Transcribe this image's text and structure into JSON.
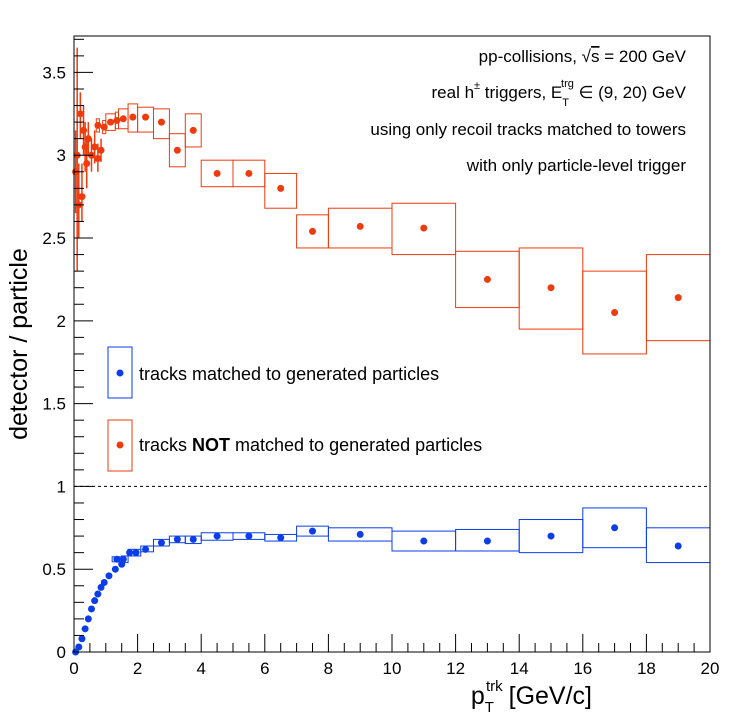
{
  "chart_data": {
    "type": "scatter",
    "xlim": [
      0,
      20
    ],
    "ylim": [
      0,
      3.72
    ],
    "grid": false,
    "xlabel": {
      "main": "p",
      "sup": "trk",
      "sub": "T",
      "unit": "[GeV/c]"
    },
    "ylabel": "detector / particle",
    "x_ticks": [
      "0",
      "2",
      "4",
      "6",
      "8",
      "10",
      "12",
      "14",
      "16",
      "18",
      "20"
    ],
    "y_ticks": [
      "0",
      "0.5",
      "1",
      "1.5",
      "2",
      "2.5",
      "3",
      "3.5"
    ],
    "reference_line": {
      "y": 1,
      "style": "dashed"
    },
    "annotations": {
      "line1": {
        "pre": "pp-collisions, ",
        "sqrt": "s",
        "post": " = 200 GeV"
      },
      "line2": {
        "pre": "real h",
        "sup_pm": "±",
        "mid": " triggers, E",
        "sup": "trg",
        "sub": "T",
        "post": " ∈ (9, 20) GeV"
      },
      "line3": "using only recoil tracks matched to towers",
      "line4": "with only particle-level trigger"
    },
    "legend": {
      "placement": "middle-left",
      "entries": [
        {
          "text": "tracks matched to generated particles"
        },
        {
          "pre": "tracks ",
          "bold": "NOT",
          "post": " matched to generated particles"
        }
      ]
    },
    "series": [
      {
        "color": "#0b3ee8",
        "stat_points": [
          {
            "x": 0.05,
            "y": 0.0
          },
          {
            "x": 0.15,
            "y": 0.03
          },
          {
            "x": 0.25,
            "y": 0.08
          },
          {
            "x": 0.35,
            "y": 0.14
          },
          {
            "x": 0.45,
            "y": 0.2
          },
          {
            "x": 0.55,
            "y": 0.26
          },
          {
            "x": 0.65,
            "y": 0.31
          },
          {
            "x": 0.75,
            "y": 0.35
          },
          {
            "x": 0.85,
            "y": 0.39
          },
          {
            "x": 0.95,
            "y": 0.42
          },
          {
            "x": 1.1,
            "y": 0.46
          },
          {
            "x": 1.3,
            "y": 0.5
          },
          {
            "x": 1.5,
            "y": 0.53
          }
        ],
        "syst_points": [
          {
            "x": 1.35,
            "y": 0.56,
            "xlo": 1.2,
            "xhi": 1.5,
            "ylo": 0.545,
            "yhi": 0.575
          },
          {
            "x": 1.55,
            "y": 0.56,
            "xlo": 1.5,
            "xhi": 1.7,
            "ylo": 0.54,
            "yhi": 0.58
          },
          {
            "x": 1.75,
            "y": 0.6,
            "xlo": 1.7,
            "xhi": 1.9,
            "ylo": 0.58,
            "yhi": 0.62
          },
          {
            "x": 1.95,
            "y": 0.6,
            "xlo": 1.9,
            "xhi": 2.1,
            "ylo": 0.58,
            "yhi": 0.62
          },
          {
            "x": 2.25,
            "y": 0.62,
            "xlo": 2.1,
            "xhi": 2.5,
            "ylo": 0.605,
            "yhi": 0.64
          },
          {
            "x": 2.75,
            "y": 0.66,
            "xlo": 2.5,
            "xhi": 3.0,
            "ylo": 0.64,
            "yhi": 0.68
          },
          {
            "x": 3.25,
            "y": 0.68,
            "xlo": 3.0,
            "xhi": 3.5,
            "ylo": 0.66,
            "yhi": 0.7
          },
          {
            "x": 3.75,
            "y": 0.68,
            "xlo": 3.5,
            "xhi": 4.0,
            "ylo": 0.655,
            "yhi": 0.7
          },
          {
            "x": 4.5,
            "y": 0.7,
            "xlo": 4.0,
            "xhi": 5.0,
            "ylo": 0.675,
            "yhi": 0.72
          },
          {
            "x": 5.5,
            "y": 0.7,
            "xlo": 5.0,
            "xhi": 6.0,
            "ylo": 0.68,
            "yhi": 0.72
          },
          {
            "x": 6.5,
            "y": 0.69,
            "xlo": 6.0,
            "xhi": 7.0,
            "ylo": 0.67,
            "yhi": 0.71
          },
          {
            "x": 7.5,
            "y": 0.73,
            "xlo": 7.0,
            "xhi": 8.0,
            "ylo": 0.7,
            "yhi": 0.76
          },
          {
            "x": 9.0,
            "y": 0.71,
            "xlo": 8.0,
            "xhi": 10.0,
            "ylo": 0.67,
            "yhi": 0.75
          },
          {
            "x": 11.0,
            "y": 0.67,
            "xlo": 10.0,
            "xhi": 12.0,
            "ylo": 0.61,
            "yhi": 0.73
          },
          {
            "x": 13.0,
            "y": 0.67,
            "xlo": 12.0,
            "xhi": 14.0,
            "ylo": 0.61,
            "yhi": 0.74
          },
          {
            "x": 15.0,
            "y": 0.7,
            "xlo": 14.0,
            "xhi": 16.0,
            "ylo": 0.6,
            "yhi": 0.8
          },
          {
            "x": 17.0,
            "y": 0.75,
            "xlo": 16.0,
            "xhi": 18.0,
            "ylo": 0.63,
            "yhi": 0.87
          },
          {
            "x": 19.0,
            "y": 0.64,
            "xlo": 18.0,
            "xhi": 20.0,
            "ylo": 0.54,
            "yhi": 0.75
          }
        ]
      },
      {
        "color": "#ee3b0e",
        "stat_points": [
          {
            "x": 0.05,
            "y": 2.9,
            "ylo": 2.65,
            "yhi": 3.15
          },
          {
            "x": 0.1,
            "y": 3.0,
            "ylo": 2.3,
            "yhi": 3.65
          },
          {
            "x": 0.15,
            "y": 2.7,
            "ylo": 2.5,
            "yhi": 2.95
          },
          {
            "x": 0.2,
            "y": 3.25,
            "ylo": 3.1,
            "yhi": 3.38
          },
          {
            "x": 0.25,
            "y": 2.75,
            "ylo": 2.6,
            "yhi": 2.95
          },
          {
            "x": 0.3,
            "y": 3.15,
            "ylo": 3.0,
            "yhi": 3.3
          },
          {
            "x": 0.35,
            "y": 3.05,
            "ylo": 2.9,
            "yhi": 3.2
          },
          {
            "x": 0.4,
            "y": 2.95,
            "ylo": 2.8,
            "yhi": 3.1
          },
          {
            "x": 0.45,
            "y": 3.1,
            "ylo": 3.0,
            "yhi": 3.2
          },
          {
            "x": 0.55,
            "y": 3.0,
            "ylo": 2.9,
            "yhi": 3.1
          },
          {
            "x": 0.65,
            "y": 3.05,
            "ylo": 2.95,
            "yhi": 3.15
          },
          {
            "x": 0.75,
            "y": 2.98,
            "ylo": 2.9,
            "yhi": 3.07
          },
          {
            "x": 0.85,
            "y": 3.03,
            "ylo": 2.96,
            "yhi": 3.1
          }
        ],
        "syst_points": [
          {
            "x": 0.75,
            "y": 3.18,
            "xlo": 0.7,
            "xhi": 0.8,
            "ylo": 3.14,
            "yhi": 3.22
          },
          {
            "x": 0.95,
            "y": 3.17,
            "xlo": 0.9,
            "xhi": 1.0,
            "ylo": 3.13,
            "yhi": 3.21
          },
          {
            "x": 1.15,
            "y": 3.2,
            "xlo": 1.0,
            "xhi": 1.3,
            "ylo": 3.15,
            "yhi": 3.25
          },
          {
            "x": 1.35,
            "y": 3.21,
            "xlo": 1.3,
            "xhi": 1.4,
            "ylo": 3.16,
            "yhi": 3.26
          },
          {
            "x": 1.55,
            "y": 3.22,
            "xlo": 1.4,
            "xhi": 1.7,
            "ylo": 3.16,
            "yhi": 3.28
          },
          {
            "x": 1.85,
            "y": 3.23,
            "xlo": 1.7,
            "xhi": 2.0,
            "ylo": 3.14,
            "yhi": 3.31
          },
          {
            "x": 2.25,
            "y": 3.23,
            "xlo": 2.0,
            "xhi": 2.5,
            "ylo": 3.14,
            "yhi": 3.29
          },
          {
            "x": 2.75,
            "y": 3.2,
            "xlo": 2.5,
            "xhi": 3.0,
            "ylo": 3.1,
            "yhi": 3.28
          },
          {
            "x": 3.25,
            "y": 3.03,
            "xlo": 3.0,
            "xhi": 3.5,
            "ylo": 2.93,
            "yhi": 3.13
          },
          {
            "x": 3.75,
            "y": 3.15,
            "xlo": 3.5,
            "xhi": 4.0,
            "ylo": 3.05,
            "yhi": 3.25
          },
          {
            "x": 4.5,
            "y": 2.89,
            "xlo": 4.0,
            "xhi": 5.0,
            "ylo": 2.81,
            "yhi": 2.97
          },
          {
            "x": 5.5,
            "y": 2.89,
            "xlo": 5.0,
            "xhi": 6.0,
            "ylo": 2.81,
            "yhi": 2.97
          },
          {
            "x": 6.5,
            "y": 2.8,
            "xlo": 6.0,
            "xhi": 7.0,
            "ylo": 2.68,
            "yhi": 2.89
          },
          {
            "x": 7.5,
            "y": 2.54,
            "xlo": 7.0,
            "xhi": 8.0,
            "ylo": 2.44,
            "yhi": 2.64
          },
          {
            "x": 9.0,
            "y": 2.57,
            "xlo": 8.0,
            "xhi": 10.0,
            "ylo": 2.44,
            "yhi": 2.68
          },
          {
            "x": 11.0,
            "y": 2.56,
            "xlo": 10.0,
            "xhi": 12.0,
            "ylo": 2.4,
            "yhi": 2.71
          },
          {
            "x": 13.0,
            "y": 2.25,
            "xlo": 12.0,
            "xhi": 14.0,
            "ylo": 2.08,
            "yhi": 2.42
          },
          {
            "x": 15.0,
            "y": 2.2,
            "xlo": 14.0,
            "xhi": 16.0,
            "ylo": 1.95,
            "yhi": 2.44
          },
          {
            "x": 17.0,
            "y": 2.05,
            "xlo": 16.0,
            "xhi": 18.0,
            "ylo": 1.8,
            "yhi": 2.3
          },
          {
            "x": 19.0,
            "y": 2.14,
            "xlo": 18.0,
            "xhi": 20.0,
            "ylo": 1.88,
            "yhi": 2.4
          }
        ]
      }
    ]
  }
}
